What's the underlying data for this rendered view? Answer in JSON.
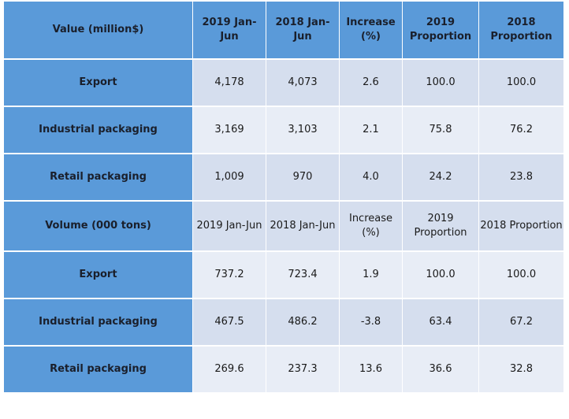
{
  "chart_data": {
    "type": "table",
    "title": "",
    "header_value": {
      "label": "Value (million$)",
      "columns": [
        "2019 Jan-Jun",
        "2018 Jan-Jun",
        "Increase (%)",
        "2019 Proportion",
        "2018 Proportion"
      ]
    },
    "value_rows": [
      {
        "label": "Export",
        "values": [
          "4,178",
          "4,073",
          "2.6",
          "100.0",
          "100.0"
        ]
      },
      {
        "label": "Industrial packaging",
        "values": [
          "3,169",
          "3,103",
          "2.1",
          "75.8",
          "76.2"
        ]
      },
      {
        "label": "Retail packaging",
        "values": [
          "1,009",
          "970",
          "4.0",
          "24.2",
          "23.8"
        ]
      }
    ],
    "header_volume": {
      "label": "Volume (000 tons)",
      "columns": [
        "2019 Jan-Jun",
        "2018 Jan-Jun",
        "Increase (%)",
        "2019 Proportion",
        "2018 Proportion"
      ]
    },
    "volume_rows": [
      {
        "label": "Export",
        "values": [
          "737.2",
          "723.4",
          "1.9",
          "100.0",
          "100.0"
        ]
      },
      {
        "label": "Industrial packaging",
        "values": [
          "467.5",
          "486.2",
          "-3.8",
          "63.4",
          "67.2"
        ]
      },
      {
        "label": "Retail packaging",
        "values": [
          "269.6",
          "237.3",
          "13.6",
          "36.6",
          "32.8"
        ]
      }
    ]
  },
  "colors": {
    "header_blue": "#5a9ad9",
    "cell_light": "#d5deee",
    "cell_lighter": "#e8edf6"
  }
}
